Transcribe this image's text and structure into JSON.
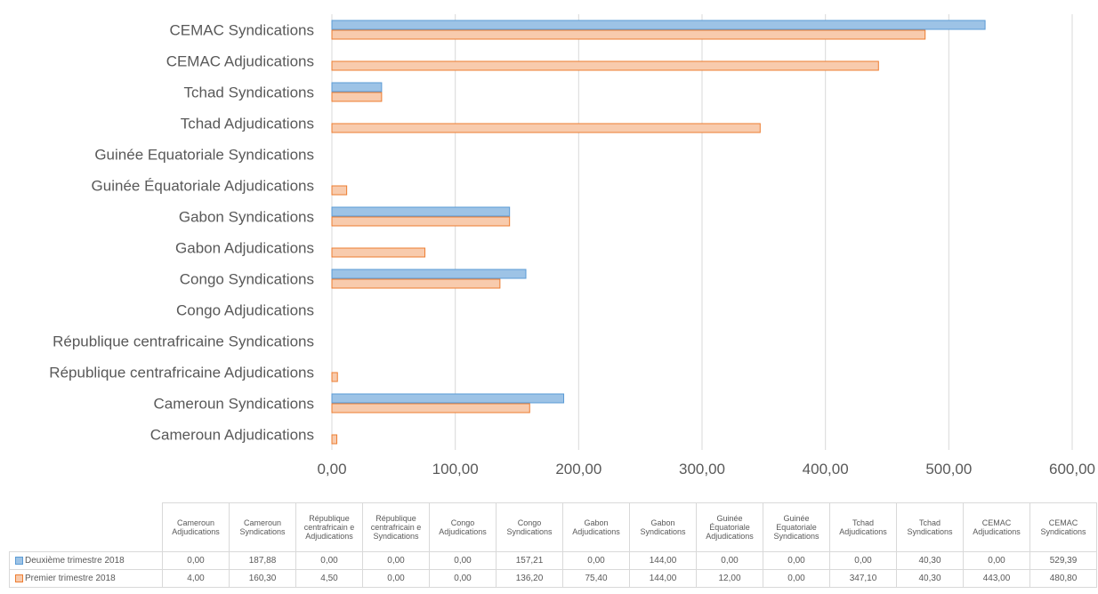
{
  "chart_data": {
    "type": "bar",
    "orientation": "horizontal",
    "categories": [
      "Cameroun Adjudications",
      "Cameroun Syndications",
      "République centrafricaine Adjudications",
      "République centrafricaine Syndications",
      "Congo Adjudications",
      "Congo Syndications",
      "Gabon Adjudications",
      "Gabon Syndications",
      "Guinée Équatoriale Adjudications",
      "Guinée Equatoriale Syndications",
      "Tchad Adjudications",
      "Tchad Syndications",
      "CEMAC Adjudications",
      "CEMAC Syndications"
    ],
    "series": [
      {
        "name": "Deuxième trimestre 2018",
        "color": "#9dc3e6",
        "stroke": "#5b9bd5",
        "values": [
          0.0,
          187.88,
          0.0,
          0.0,
          0.0,
          157.21,
          0.0,
          144.0,
          0.0,
          0.0,
          0.0,
          40.3,
          0.0,
          529.39
        ],
        "labels": [
          "0,00",
          "187,88",
          "0,00",
          "0,00",
          "0,00",
          "157,21",
          "0,00",
          "144,00",
          "0,00",
          "0,00",
          "0,00",
          "40,30",
          "0,00",
          "529,39"
        ]
      },
      {
        "name": "Premier trimestre 2018",
        "color": "#f8cbad",
        "stroke": "#ed7d31",
        "values": [
          4.0,
          160.3,
          4.5,
          0.0,
          0.0,
          136.2,
          75.4,
          144.0,
          12.0,
          0.0,
          347.1,
          40.3,
          443.0,
          480.8
        ],
        "labels": [
          "4,00",
          "160,30",
          "4,50",
          "0,00",
          "0,00",
          "136,20",
          "75,40",
          "144,00",
          "12,00",
          "0,00",
          "347,10",
          "40,30",
          "443,00",
          "480,80"
        ]
      }
    ],
    "xlim": [
      0,
      600
    ],
    "x_ticks": [
      0,
      100,
      200,
      300,
      400,
      500,
      600
    ],
    "x_tick_labels": [
      "0,00",
      "100,00",
      "200,00",
      "300,00",
      "400,00",
      "500,00",
      "600,00"
    ],
    "grid": "vertical",
    "legend": "data-table",
    "table_headers": [
      "Cameroun Adjudications",
      "Cameroun Syndications",
      "République centrafricain e Adjudications",
      "République centrafricain e Syndications",
      "Congo Adjudications",
      "Congo Syndications",
      "Gabon Adjudications",
      "Gabon Syndications",
      "Guinée Équatoriale Adjudications",
      "Guinée Equatoriale Syndications",
      "Tchad Adjudications",
      "Tchad Syndications",
      "CEMAC Adjudications",
      "CEMAC Syndications"
    ]
  }
}
